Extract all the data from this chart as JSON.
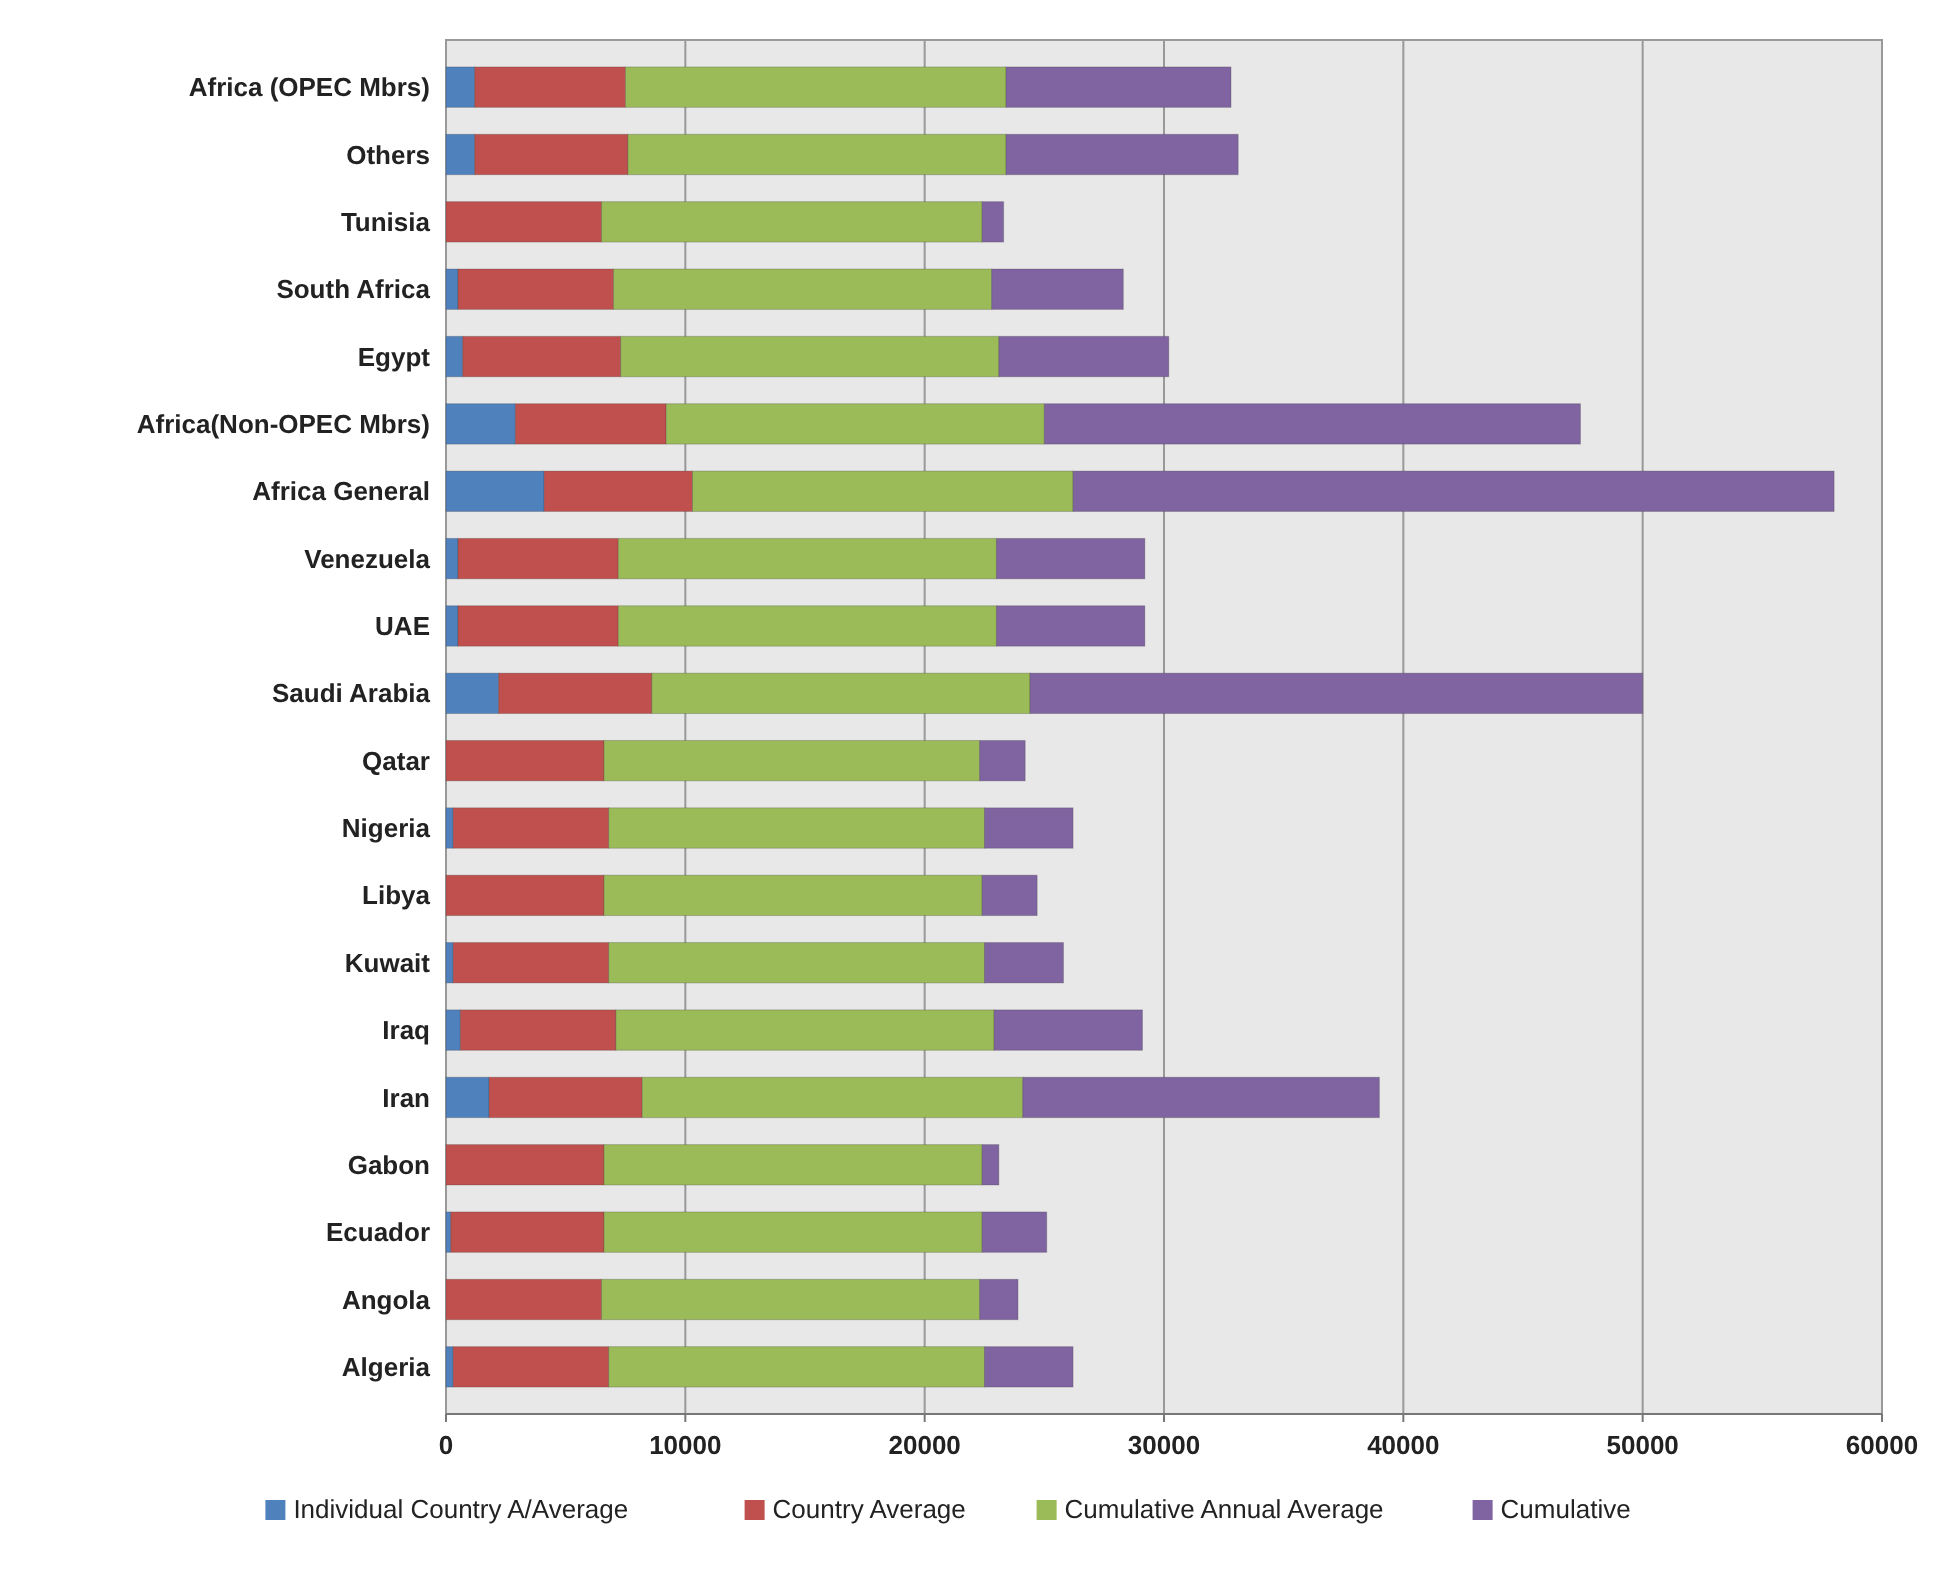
{
  "chart_data": {
    "type": "bar",
    "orientation": "horizontal",
    "stacked": true,
    "grid": "x",
    "legend": "bottom",
    "categories": [
      "Africa (OPEC Mbrs)",
      "Others",
      "Tunisia",
      "South Africa",
      "Egypt",
      "Africa(Non-OPEC Mbrs)",
      "Africa General",
      "Venezuela",
      "UAE",
      "Saudi Arabia",
      "Qatar",
      "Nigeria",
      "Libya",
      "Kuwait",
      "Iraq",
      "Iran",
      "Gabon",
      "Ecuador",
      "Angola",
      "Algeria"
    ],
    "xlim": [
      0,
      60000
    ],
    "xticks": [
      0,
      10000,
      20000,
      30000,
      40000,
      50000,
      60000
    ],
    "series": [
      {
        "name": "Individual Country A/Average",
        "color": "#4f81bd",
        "values": [
          1200,
          1200,
          0,
          500,
          700,
          2900,
          4100,
          500,
          500,
          2200,
          0,
          300,
          0,
          300,
          600,
          1800,
          0,
          200,
          0,
          300
        ]
      },
      {
        "name": "Country Average",
        "color": "#c0504d",
        "values": [
          6300,
          6400,
          6500,
          6500,
          6600,
          6300,
          6200,
          6700,
          6700,
          6400,
          6600,
          6500,
          6600,
          6500,
          6500,
          6400,
          6600,
          6400,
          6500,
          6500
        ]
      },
      {
        "name": "Cumulative Annual Average",
        "color": "#9bbb59",
        "values": [
          15900,
          15800,
          15900,
          15800,
          15800,
          15800,
          15900,
          15800,
          15800,
          15800,
          15700,
          15700,
          15800,
          15700,
          15800,
          15900,
          15800,
          15800,
          15800,
          15700
        ]
      },
      {
        "name": "Cumulative",
        "color": "#8064a2",
        "values": [
          9400,
          9700,
          900,
          5500,
          7100,
          22400,
          31800,
          6200,
          6200,
          25600,
          1900,
          3700,
          2300,
          3300,
          6200,
          14900,
          700,
          2700,
          1600,
          3700
        ]
      }
    ]
  }
}
